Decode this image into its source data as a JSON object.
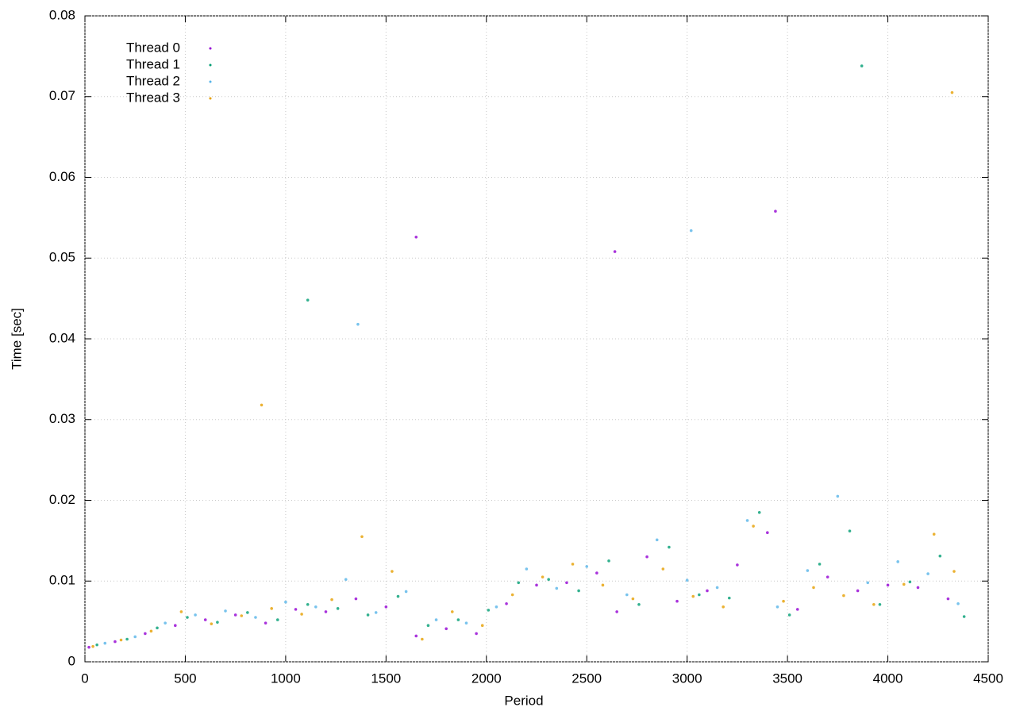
{
  "chart_data": {
    "type": "scatter",
    "xlabel": "Period",
    "ylabel": "Time [sec]",
    "xlim": [
      0,
      4500
    ],
    "ylim": [
      0,
      0.08
    ],
    "xticks": [
      0,
      500,
      1000,
      1500,
      2000,
      2500,
      3000,
      3500,
      4000,
      4500
    ],
    "yticks": [
      0,
      0.01,
      0.02,
      0.03,
      0.04,
      0.05,
      0.06,
      0.07,
      0.08
    ],
    "grid": true,
    "legend": "upper-left",
    "series": [
      {
        "name": "Thread 0",
        "color": "#9400d3",
        "x": [
          20,
          150,
          300,
          450,
          600,
          750,
          900,
          1050,
          1200,
          1350,
          1500,
          1650,
          1800,
          1950,
          2100,
          2250,
          2400,
          2550,
          2650,
          2800,
          2950,
          3100,
          3250,
          3400,
          3550,
          3700,
          3850,
          4000,
          4150,
          4300,
          1650,
          2640,
          3440
        ],
        "values": [
          0.0018,
          0.0025,
          0.0035,
          0.0045,
          0.0052,
          0.0058,
          0.0048,
          0.0065,
          0.0062,
          0.0078,
          0.0068,
          0.0032,
          0.0041,
          0.0035,
          0.0072,
          0.0095,
          0.0098,
          0.011,
          0.0062,
          0.013,
          0.0075,
          0.0088,
          0.012,
          0.016,
          0.0065,
          0.0105,
          0.0088,
          0.0095,
          0.0092,
          0.0078,
          0.0526,
          0.0508,
          0.0558
        ]
      },
      {
        "name": "Thread 1",
        "color": "#009e73",
        "x": [
          60,
          210,
          360,
          510,
          660,
          810,
          960,
          1110,
          1260,
          1410,
          1560,
          1710,
          1860,
          2010,
          2160,
          2310,
          2460,
          2610,
          2760,
          2910,
          3060,
          3210,
          3360,
          3510,
          3660,
          3810,
          3960,
          4110,
          4260,
          4380,
          1110,
          3870
        ],
        "values": [
          0.0021,
          0.0028,
          0.0042,
          0.0055,
          0.0049,
          0.0061,
          0.0052,
          0.0071,
          0.0066,
          0.0058,
          0.0081,
          0.0045,
          0.0052,
          0.0064,
          0.0098,
          0.0102,
          0.0088,
          0.0125,
          0.0071,
          0.0142,
          0.0083,
          0.0079,
          0.0185,
          0.0058,
          0.0121,
          0.0162,
          0.0071,
          0.0099,
          0.0131,
          0.0056,
          0.0448,
          0.0738
        ]
      },
      {
        "name": "Thread 2",
        "color": "#56b4e9",
        "x": [
          100,
          250,
          400,
          550,
          700,
          850,
          1000,
          1150,
          1300,
          1450,
          1600,
          1750,
          1900,
          2050,
          2200,
          2350,
          2500,
          2700,
          2850,
          3000,
          3150,
          3300,
          3450,
          3600,
          3750,
          3900,
          4050,
          4200,
          4350,
          1360,
          3020
        ],
        "values": [
          0.0023,
          0.0031,
          0.0048,
          0.0058,
          0.0063,
          0.0055,
          0.0074,
          0.0068,
          0.0102,
          0.0061,
          0.0087,
          0.0052,
          0.0048,
          0.0068,
          0.0115,
          0.0091,
          0.0118,
          0.0083,
          0.0151,
          0.0101,
          0.0092,
          0.0175,
          0.0068,
          0.0113,
          0.0205,
          0.0098,
          0.0124,
          0.0109,
          0.0072,
          0.0418,
          0.0534
        ]
      },
      {
        "name": "Thread 3",
        "color": "#e69f00",
        "x": [
          40,
          180,
          330,
          480,
          630,
          780,
          930,
          1080,
          1230,
          1380,
          1530,
          1680,
          1830,
          1980,
          2130,
          2280,
          2430,
          2580,
          2730,
          2880,
          3030,
          3180,
          3330,
          3480,
          3630,
          3780,
          3930,
          4080,
          4230,
          4330,
          880,
          4320
        ],
        "values": [
          0.0019,
          0.0027,
          0.0038,
          0.0062,
          0.0047,
          0.0057,
          0.0066,
          0.0059,
          0.0077,
          0.0155,
          0.0112,
          0.0028,
          0.0062,
          0.0045,
          0.0083,
          0.0105,
          0.0121,
          0.0095,
          0.0078,
          0.0115,
          0.0081,
          0.0068,
          0.0168,
          0.0075,
          0.0092,
          0.0082,
          0.0071,
          0.0096,
          0.0158,
          0.0112,
          0.0318,
          0.0705
        ]
      }
    ]
  }
}
